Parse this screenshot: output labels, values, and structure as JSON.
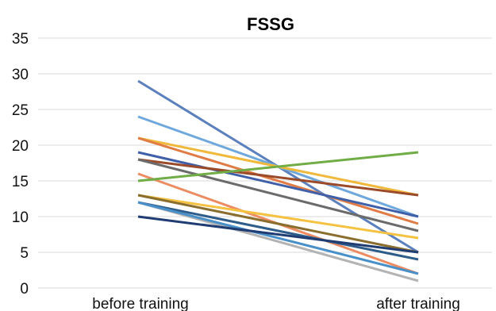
{
  "chart_data": {
    "type": "line",
    "title": "FSSG",
    "categories": [
      "before  training",
      "after training"
    ],
    "ylim": [
      0,
      35
    ],
    "yticks": [
      0,
      5,
      10,
      15,
      20,
      25,
      30,
      35
    ],
    "grid": true,
    "legend": "none",
    "series": [
      {
        "values": [
          29,
          5
        ],
        "color": "#5b80bd"
      },
      {
        "values": [
          24,
          10
        ],
        "color": "#6fa8dc"
      },
      {
        "values": [
          21,
          13
        ],
        "color": "#f0b93c"
      },
      {
        "values": [
          21,
          9
        ],
        "color": "#e07b45"
      },
      {
        "values": [
          19,
          10
        ],
        "color": "#3f5fa8"
      },
      {
        "values": [
          18,
          13
        ],
        "color": "#9b4a2a"
      },
      {
        "values": [
          18,
          8
        ],
        "color": "#6b6b6b"
      },
      {
        "values": [
          16,
          2
        ],
        "color": "#ec8c62"
      },
      {
        "values": [
          15,
          19
        ],
        "color": "#70ad47"
      },
      {
        "values": [
          13,
          7
        ],
        "color": "#f5c242"
      },
      {
        "values": [
          13,
          5
        ],
        "color": "#8a6e2e"
      },
      {
        "values": [
          12,
          4
        ],
        "color": "#2f5d8a"
      },
      {
        "values": [
          12,
          1
        ],
        "color": "#b3b3b3"
      },
      {
        "values": [
          12,
          2
        ],
        "color": "#4a90c8"
      },
      {
        "values": [
          10,
          5
        ],
        "color": "#1f3c73"
      }
    ]
  }
}
